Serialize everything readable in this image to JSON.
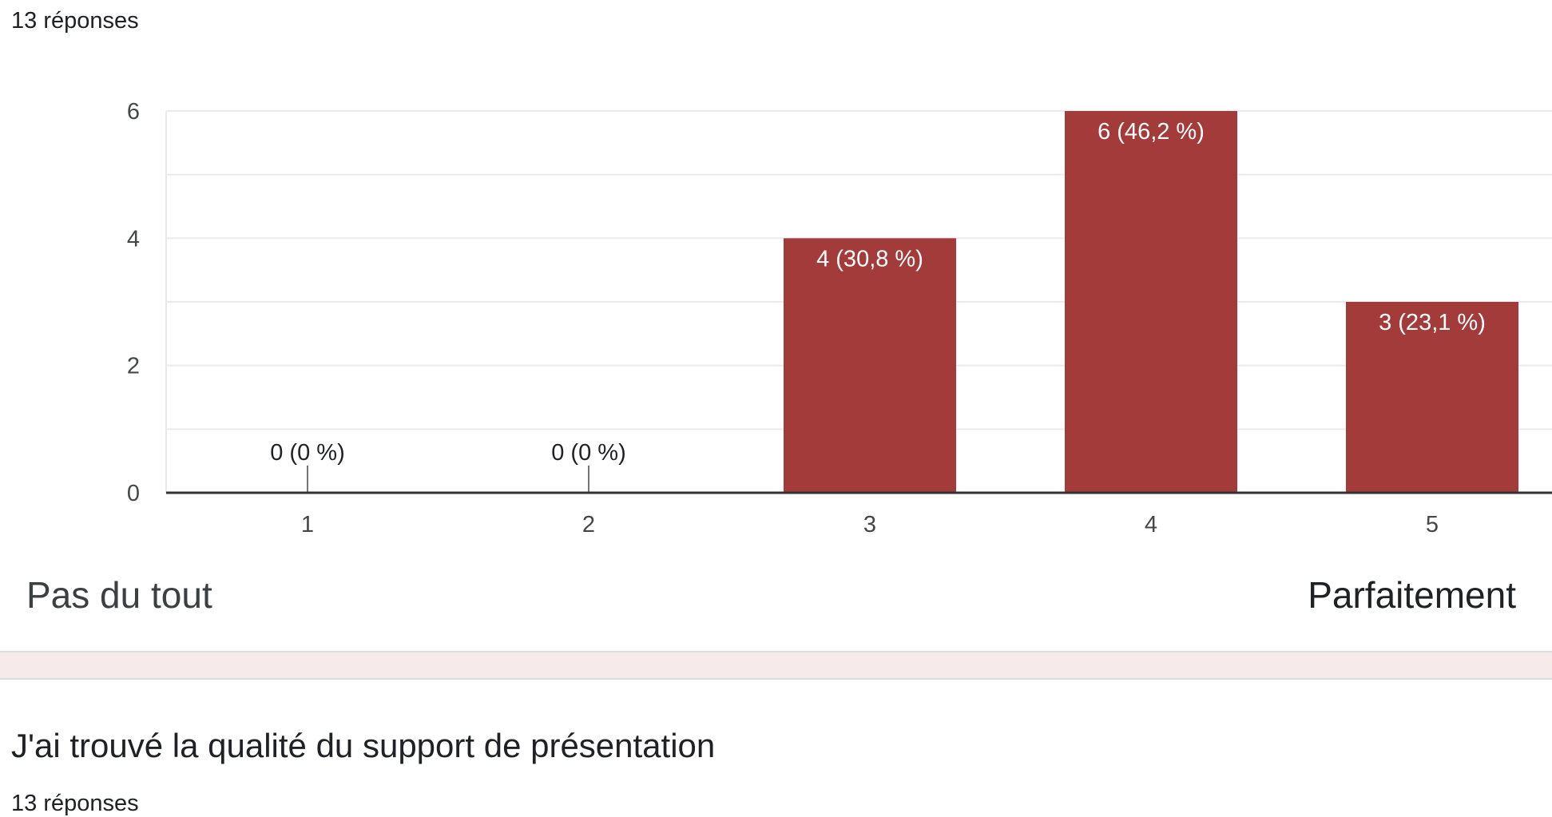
{
  "response_count": "13 réponses",
  "colors": {
    "bar": "#a43b3b",
    "grid": "#ebebeb",
    "axis": "#333333",
    "band": "#f6eaea"
  },
  "chart_data": {
    "type": "bar",
    "categories": [
      "1",
      "2",
      "3",
      "4",
      "5"
    ],
    "values": [
      0,
      0,
      4,
      6,
      3
    ],
    "data_labels": [
      "0 (0 %)",
      "0 (0 %)",
      "4 (30,8 %)",
      "6 (46,2 %)",
      "3 (23,1 %)"
    ],
    "ylim": [
      0,
      6
    ],
    "yticks": [
      0,
      2,
      4,
      6
    ],
    "grid": true
  },
  "scale": {
    "min_label": "Pas du tout",
    "max_label": "Parfaitement"
  },
  "next_question": {
    "title": "J'ai trouvé la qualité du support de présentation",
    "response_count": "13 réponses"
  }
}
